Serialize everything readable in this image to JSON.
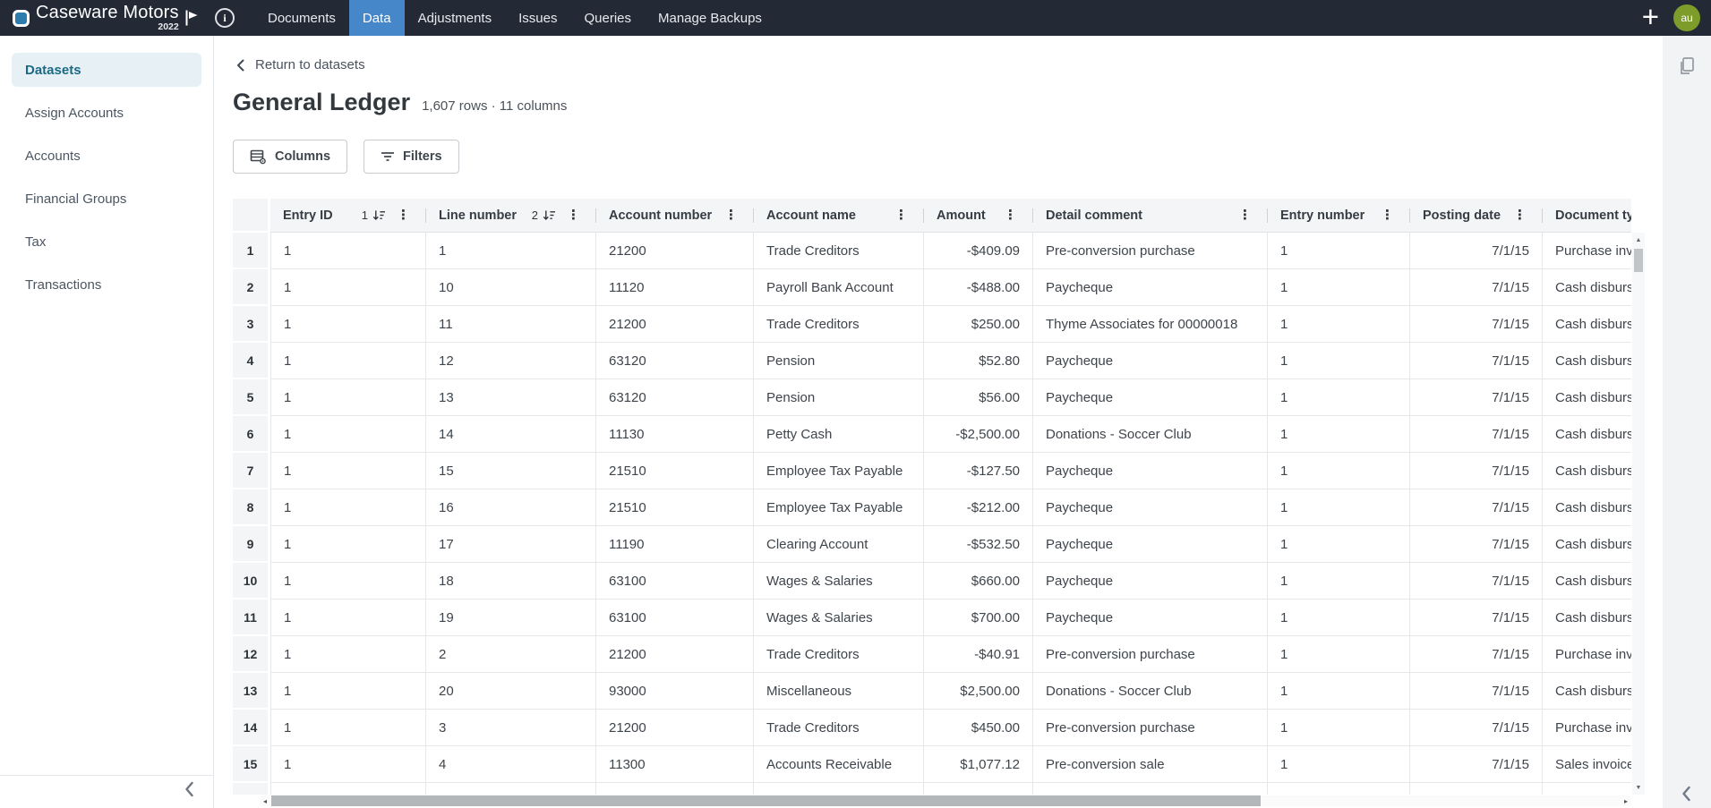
{
  "topbar": {
    "brand_name": "Caseware Motors",
    "brand_year": "2022",
    "nav": [
      {
        "label": "Documents",
        "active": false
      },
      {
        "label": "Data",
        "active": true
      },
      {
        "label": "Adjustments",
        "active": false
      },
      {
        "label": "Issues",
        "active": false
      },
      {
        "label": "Queries",
        "active": false
      },
      {
        "label": "Manage Backups",
        "active": false
      }
    ],
    "avatar": "au"
  },
  "sidebar": {
    "items": [
      {
        "label": "Datasets",
        "active": true
      },
      {
        "label": "Assign Accounts",
        "active": false
      },
      {
        "label": "Accounts",
        "active": false
      },
      {
        "label": "Financial Groups",
        "active": false
      },
      {
        "label": "Tax",
        "active": false
      },
      {
        "label": "Transactions",
        "active": false
      }
    ]
  },
  "page": {
    "breadcrumb": "Return to datasets",
    "title": "General Ledger",
    "meta": "1,607 rows · 11 columns",
    "columns_button": "Columns",
    "filters_button": "Filters"
  },
  "table": {
    "columns": [
      {
        "label": "Entry ID",
        "sort_badge": "1"
      },
      {
        "label": "Line number",
        "sort_badge": "2"
      },
      {
        "label": "Account number"
      },
      {
        "label": "Account name"
      },
      {
        "label": "Amount"
      },
      {
        "label": "Detail comment"
      },
      {
        "label": "Entry number"
      },
      {
        "label": "Posting date"
      },
      {
        "label": "Document type"
      }
    ],
    "rows": [
      [
        "1",
        "1",
        "1",
        "21200",
        "Trade Creditors",
        "-$409.09",
        "Pre-conversion purchase",
        "1",
        "7/1/15",
        "Purchase invoices"
      ],
      [
        "2",
        "1",
        "10",
        "11120",
        "Payroll Bank Account",
        "-$488.00",
        "Paycheque",
        "1",
        "7/1/15",
        "Cash disbursements"
      ],
      [
        "3",
        "1",
        "11",
        "21200",
        "Trade Creditors",
        "$250.00",
        "Thyme Associates for 00000018",
        "1",
        "7/1/15",
        "Cash disbursements"
      ],
      [
        "4",
        "1",
        "12",
        "63120",
        "Pension",
        "$52.80",
        "Paycheque",
        "1",
        "7/1/15",
        "Cash disbursements"
      ],
      [
        "5",
        "1",
        "13",
        "63120",
        "Pension",
        "$56.00",
        "Paycheque",
        "1",
        "7/1/15",
        "Cash disbursements"
      ],
      [
        "6",
        "1",
        "14",
        "11130",
        "Petty Cash",
        "-$2,500.00",
        "Donations - Soccer Club",
        "1",
        "7/1/15",
        "Cash disbursements"
      ],
      [
        "7",
        "1",
        "15",
        "21510",
        "Employee Tax Payable",
        "-$127.50",
        "Paycheque",
        "1",
        "7/1/15",
        "Cash disbursements"
      ],
      [
        "8",
        "1",
        "16",
        "21510",
        "Employee Tax Payable",
        "-$212.00",
        "Paycheque",
        "1",
        "7/1/15",
        "Cash disbursements"
      ],
      [
        "9",
        "1",
        "17",
        "11190",
        "Clearing Account",
        "-$532.50",
        "Paycheque",
        "1",
        "7/1/15",
        "Cash disbursements"
      ],
      [
        "10",
        "1",
        "18",
        "63100",
        "Wages & Salaries",
        "$660.00",
        "Paycheque",
        "1",
        "7/1/15",
        "Cash disbursements"
      ],
      [
        "11",
        "1",
        "19",
        "63100",
        "Wages & Salaries",
        "$700.00",
        "Paycheque",
        "1",
        "7/1/15",
        "Cash disbursements"
      ],
      [
        "12",
        "1",
        "2",
        "21200",
        "Trade Creditors",
        "-$40.91",
        "Pre-conversion purchase",
        "1",
        "7/1/15",
        "Purchase invoices"
      ],
      [
        "13",
        "1",
        "20",
        "93000",
        "Miscellaneous",
        "$2,500.00",
        "Donations - Soccer Club",
        "1",
        "7/1/15",
        "Cash disbursements"
      ],
      [
        "14",
        "1",
        "3",
        "21200",
        "Trade Creditors",
        "$450.00",
        "Pre-conversion purchase",
        "1",
        "7/1/15",
        "Purchase invoices"
      ],
      [
        "15",
        "1",
        "4",
        "11300",
        "Accounts Receivable",
        "$1,077.12",
        "Pre-conversion sale",
        "1",
        "7/1/15",
        "Sales invoices"
      ]
    ]
  },
  "colors": {
    "topbar_bg": "#232a35",
    "active_tab": "#4687ca",
    "logo_fill": "#2d7cab",
    "active_item_bg": "#e7f0f5",
    "active_item_text": "#1b6a85",
    "avatar_bg": "#7d9c2a"
  }
}
